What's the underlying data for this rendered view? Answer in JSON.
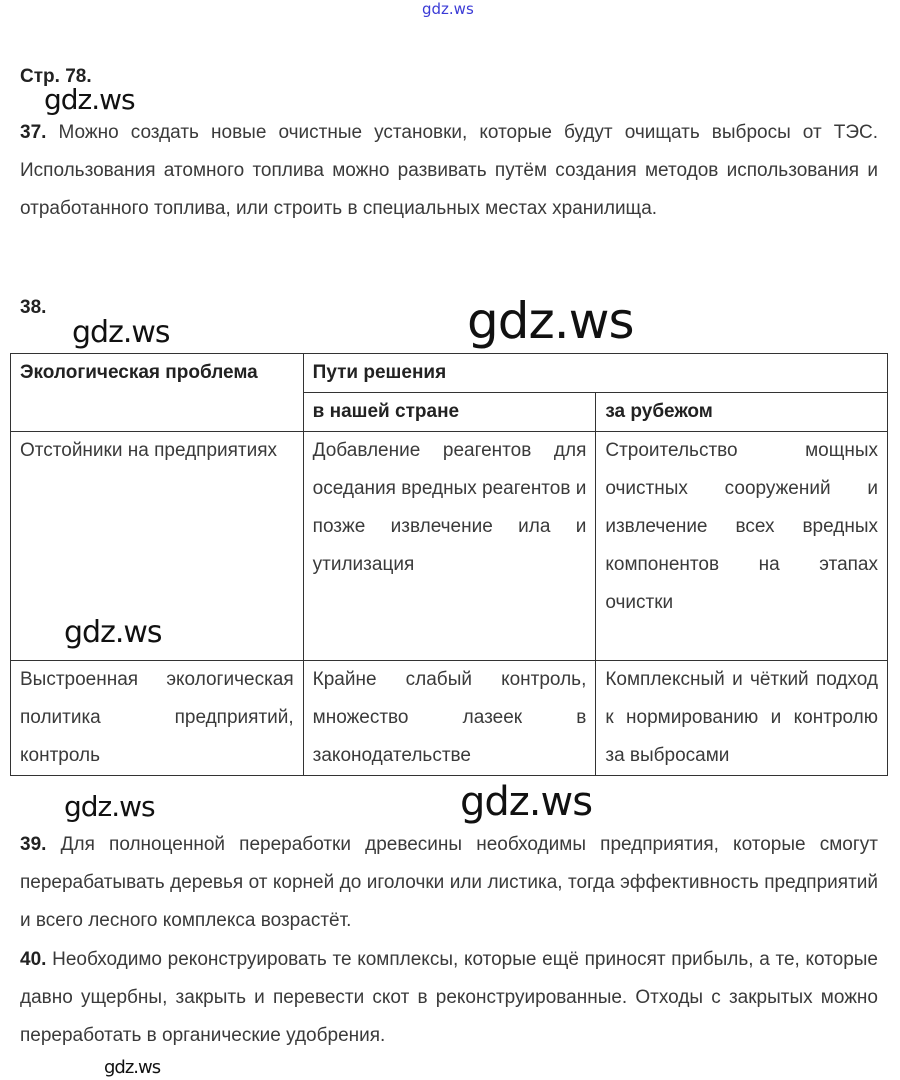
{
  "watermark": "gdz.ws",
  "page_heading": "Стр. 78.",
  "answers": [
    {
      "number": "37.",
      "text": "Можно создать новые очистные установки, которые будут очищать выбросы от ТЭС. Использования атомного топлива можно развивать путём создания методов использования и отработанного топлива, или строить в специальных местах хранилища."
    },
    {
      "number": "38.",
      "text": ""
    },
    {
      "number": "39.",
      "text": "Для полноценной переработки древесины необходимы предприятия, которые смогут перерабатывать деревья от корней до иголочки или листика, тогда эффективность предприятий и всего лесного комплекса возрастёт."
    },
    {
      "number": "40.",
      "text": "Необходимо реконструировать те комплексы, которые ещё приносят прибыль, а те, которые давно ущербны, закрыть и перевести скот в реконструированные. Отходы с закрытых можно переработать в органические удобрения."
    }
  ],
  "table": {
    "header_problem": "Экологическая проблема",
    "header_solutions": "Пути решения",
    "header_domestic": "в нашей стране",
    "header_abroad": "за рубежом",
    "rows": [
      [
        "Отстойники на предприятиях",
        "Добавление реагентов для оседания вредных реагентов и позже извлечение ила и утилизация",
        "Строительство мощных очистных сооружений и извлечение всех вредных компонентов на этапах очистки"
      ],
      [
        "Выстроенная экологическая политика предприятий, контроль",
        "Крайне слабый контроль, множество лазеек в законодательстве",
        "Комплексный и чёткий подход к нормированию и контролю за выбросами"
      ]
    ]
  }
}
